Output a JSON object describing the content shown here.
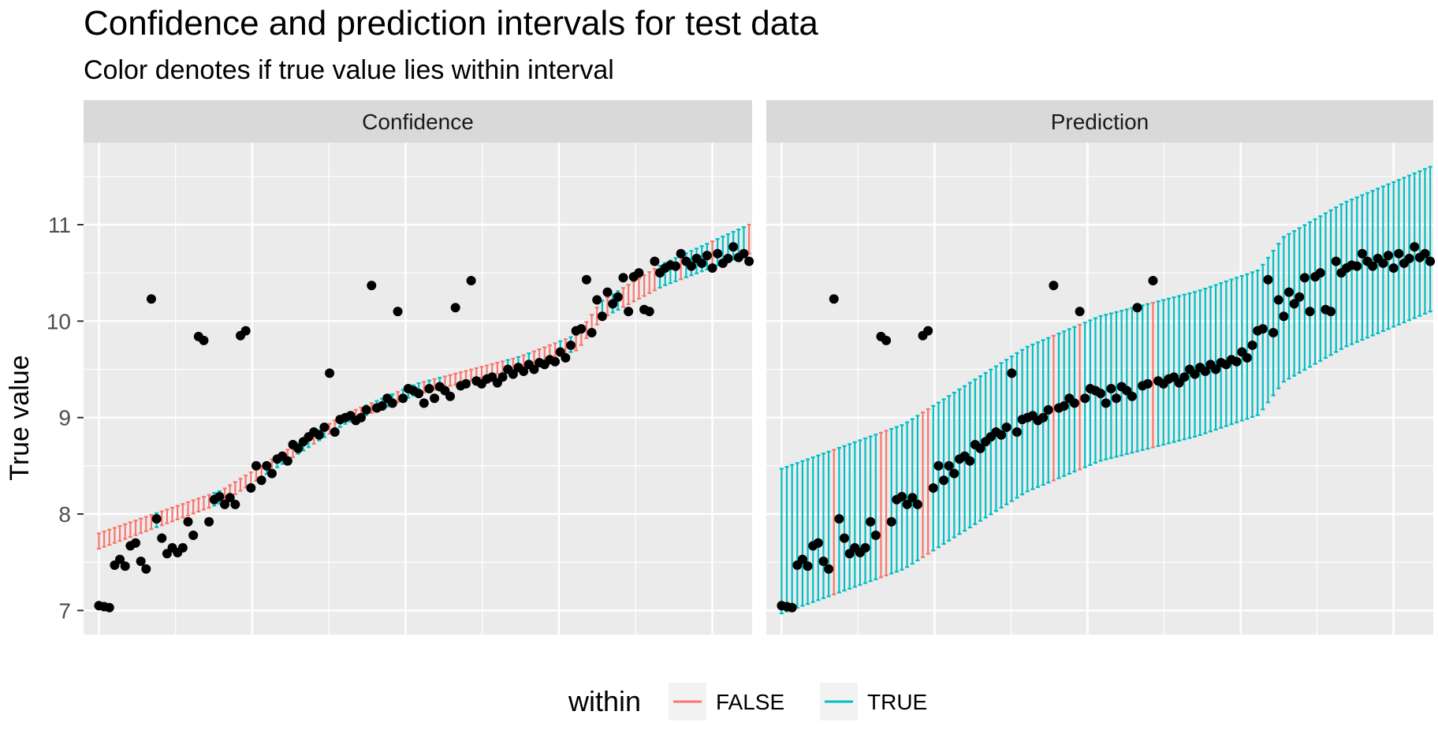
{
  "chart_data": {
    "type": "scatter",
    "title": "Confidence and prediction intervals for test data",
    "subtitle": "Color denotes if true value lies within interval",
    "ylabel": "True value",
    "xlabel": "",
    "ylim": [
      6.75,
      11.85
    ],
    "xlim": [
      -2.5,
      106.5
    ],
    "yticks": [
      7,
      8,
      9,
      10,
      11
    ],
    "grid": true,
    "facets": [
      "Confidence",
      "Prediction"
    ],
    "legend": {
      "title": "within",
      "position": "bottom",
      "entries": [
        {
          "label": "FALSE",
          "color": "#F8766D"
        },
        {
          "label": "TRUE",
          "color": "#00BFC4"
        }
      ]
    },
    "colors": {
      "false": "#F8766D",
      "true": "#00BFC4",
      "point": "#000000",
      "panel_bg": "#EBEBEB",
      "strip_bg": "#D9D9D9",
      "grid": "#FFFFFF"
    },
    "fitted_points": [
      [
        0,
        7.72
      ],
      [
        20,
        8.18
      ],
      [
        40,
        8.98
      ],
      [
        52,
        9.3
      ],
      [
        68,
        9.56
      ],
      [
        78,
        9.78
      ],
      [
        82,
        10.12
      ],
      [
        92,
        10.48
      ],
      [
        106,
        10.85
      ]
    ],
    "confidence_halfwidth_points": [
      [
        0,
        0.08
      ],
      [
        40,
        0.05
      ],
      [
        70,
        0.06
      ],
      [
        106,
        0.15
      ]
    ],
    "prediction_halfwidth": 0.75,
    "true_values": [
      7.05,
      7.04,
      7.03,
      7.47,
      7.53,
      7.46,
      7.67,
      7.7,
      7.51,
      7.43,
      10.23,
      7.95,
      7.75,
      7.59,
      7.65,
      7.6,
      7.65,
      7.92,
      7.78,
      9.84,
      9.8,
      7.92,
      8.15,
      8.18,
      8.1,
      8.17,
      8.1,
      9.85,
      9.9,
      8.27,
      8.5,
      8.35,
      8.5,
      8.42,
      8.57,
      8.6,
      8.55,
      8.72,
      8.68,
      8.75,
      8.8,
      8.85,
      8.82,
      8.9,
      9.46,
      8.85,
      8.98,
      9.0,
      9.02,
      8.97,
      9.0,
      9.08,
      10.37,
      9.1,
      9.12,
      9.2,
      9.15,
      10.1,
      9.2,
      9.3,
      9.28,
      9.25,
      9.15,
      9.3,
      9.2,
      9.32,
      9.28,
      9.22,
      10.14,
      9.33,
      9.35,
      10.42,
      9.38,
      9.35,
      9.4,
      9.42,
      9.36,
      9.42,
      9.5,
      9.45,
      9.52,
      9.48,
      9.55,
      9.5,
      9.57,
      9.55,
      9.6,
      9.58,
      9.68,
      9.62,
      9.75,
      9.9,
      9.92,
      10.43,
      9.88,
      10.22,
      10.05,
      10.3,
      10.18,
      10.25,
      10.45,
      10.1,
      10.46,
      10.5,
      10.12,
      10.1,
      10.62,
      10.5,
      10.55,
      10.58,
      10.57,
      10.7,
      10.62,
      10.57,
      10.65,
      10.6,
      10.68,
      10.55,
      10.7,
      10.6,
      10.65,
      10.77,
      10.66,
      10.7,
      10.62
    ]
  }
}
